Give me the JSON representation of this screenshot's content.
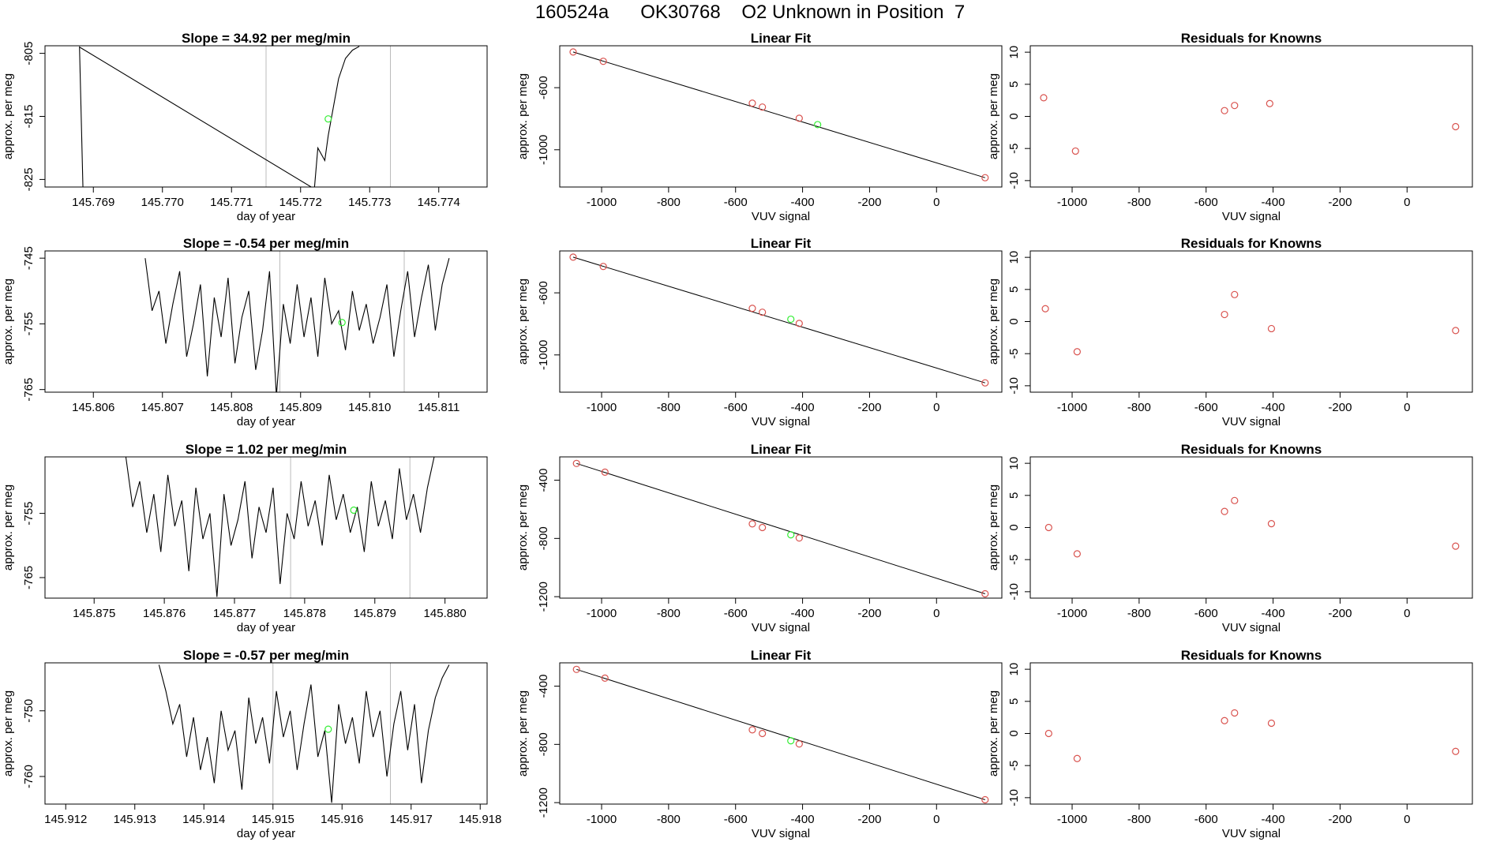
{
  "header": {
    "title": "160524a      OK30768    O2 Unknown in Position  7"
  },
  "colors": {
    "known": "#d9534f",
    "unknown": "#33ee33",
    "line": "#000000",
    "vline": "#bbbbbb"
  },
  "chart_data": [
    {
      "type": "line",
      "row": 0,
      "col": 0,
      "title": "Slope =  34.92  per meg/min",
      "xlabel": "day of year",
      "ylabel": "approx. per meg",
      "xlim": [
        145.7683,
        145.7747
      ],
      "ylim": [
        -826.2,
        -803.8
      ],
      "xticks": [
        145.769,
        145.77,
        145.771,
        145.772,
        145.773,
        145.774
      ],
      "xtick_labels": [
        "145.769",
        "145.770",
        "145.771",
        "145.772",
        "145.773",
        "145.774"
      ],
      "yticks": [
        -805,
        -815,
        -825
      ],
      "ytick_labels": [
        "-805",
        "-815",
        "-825"
      ],
      "vlines": [
        145.7715,
        145.7733
      ],
      "series": [
        {
          "name": "signal",
          "x": [
            145.76885,
            145.7688,
            145.7722,
            145.77225,
            145.77235,
            145.7724,
            145.7725,
            145.77255,
            145.77265,
            145.77275,
            145.77285
          ],
          "y": [
            -826.5,
            -804,
            -826.5,
            -820,
            -822,
            -818,
            -812,
            -809,
            -805.8,
            -804.5,
            -803.9
          ]
        }
      ],
      "unknown_point": {
        "x": 145.7724,
        "y": -815.4
      }
    },
    {
      "type": "line",
      "row": 1,
      "col": 0,
      "title": "Slope =  -0.54  per meg/min",
      "xlabel": "day of year",
      "ylabel": "approx. per meg",
      "xlim": [
        145.8053,
        145.8117
      ],
      "ylim": [
        -765.4,
        -743.9
      ],
      "xticks": [
        145.806,
        145.807,
        145.808,
        145.809,
        145.81,
        145.811
      ],
      "xtick_labels": [
        "145.806",
        "145.807",
        "145.808",
        "145.809",
        "145.810",
        "145.811"
      ],
      "yticks": [
        -745,
        -755,
        -765
      ],
      "ytick_labels": [
        "-745",
        "-755",
        "-765"
      ],
      "vlines": [
        145.8087,
        145.8105
      ],
      "series": [
        {
          "name": "signal",
          "x": [
            145.80675,
            145.80685,
            145.80695,
            145.80705,
            145.80715,
            145.80725,
            145.80735,
            145.80745,
            145.80755,
            145.80765,
            145.80775,
            145.80785,
            145.80795,
            145.80805,
            145.80815,
            145.80825,
            145.80835,
            145.80845,
            145.80855,
            145.80865,
            145.80875,
            145.80885,
            145.80895,
            145.80905,
            145.80915,
            145.80925,
            145.80935,
            145.80945,
            145.80955,
            145.80965,
            145.80975,
            145.80985,
            145.80995,
            145.81005,
            145.81015,
            145.81025,
            145.81035,
            145.81045,
            145.81055,
            145.81065,
            145.81075,
            145.81085,
            145.81095,
            145.81105,
            145.81115
          ],
          "y": [
            -745,
            -753,
            -750,
            -758,
            -752,
            -747,
            -760,
            -755,
            -749,
            -763,
            -751,
            -757,
            -748,
            -761,
            -754,
            -750,
            -762,
            -756,
            -747,
            -766,
            -752,
            -758,
            -749,
            -757,
            -751,
            -760,
            -748,
            -755,
            -753,
            -759,
            -750,
            -756,
            -752,
            -758,
            -754,
            -749,
            -760,
            -753,
            -747,
            -757,
            -751,
            -746,
            -756,
            -749,
            -745
          ]
        }
      ],
      "unknown_point": {
        "x": 145.8096,
        "y": -754.8
      }
    },
    {
      "type": "line",
      "row": 2,
      "col": 0,
      "title": "Slope =  1.02  per meg/min",
      "xlabel": "day of year",
      "ylabel": "approx. per meg",
      "xlim": [
        145.8743,
        145.8806
      ],
      "ylim": [
        -768.2,
        -746.2
      ],
      "xticks": [
        145.875,
        145.876,
        145.877,
        145.878,
        145.879,
        145.88
      ],
      "xtick_labels": [
        "145.875",
        "145.876",
        "145.877",
        "145.878",
        "145.879",
        "145.880"
      ],
      "yticks": [
        -755,
        -765
      ],
      "ytick_labels": [
        "-755",
        "-765"
      ],
      "vlines": [
        145.8778,
        145.8795
      ],
      "series": [
        {
          "name": "signal",
          "x": [
            145.87545,
            145.87555,
            145.87565,
            145.87575,
            145.87585,
            145.87595,
            145.87605,
            145.87615,
            145.87625,
            145.87635,
            145.87645,
            145.87655,
            145.87665,
            145.87675,
            145.87685,
            145.87695,
            145.87705,
            145.87715,
            145.87725,
            145.87735,
            145.87745,
            145.87755,
            145.87765,
            145.87775,
            145.87785,
            145.87795,
            145.87805,
            145.87815,
            145.87825,
            145.87835,
            145.87845,
            145.87855,
            145.87865,
            145.87875,
            145.87885,
            145.87895,
            145.87905,
            145.87915,
            145.87925,
            145.87935,
            145.87945,
            145.87955,
            145.87965,
            145.87975,
            145.87985,
            145.87995
          ],
          "y": [
            -746,
            -754,
            -750,
            -758,
            -752,
            -761,
            -749,
            -757,
            -753,
            -764,
            -751,
            -759,
            -755,
            -768,
            -752,
            -760,
            -756,
            -750,
            -762,
            -754,
            -758,
            -751,
            -766,
            -755,
            -759,
            -750,
            -757,
            -753,
            -760,
            -749,
            -756,
            -752,
            -758,
            -754,
            -761,
            -750,
            -757,
            -753,
            -759,
            -748,
            -756,
            -752,
            -758,
            -751,
            -746,
            -746
          ]
        }
      ],
      "unknown_point": {
        "x": 145.8787,
        "y": -754.5
      }
    },
    {
      "type": "line",
      "row": 3,
      "col": 0,
      "title": "Slope =  -0.57  per meg/min",
      "xlabel": "day of year",
      "ylabel": "approx. per meg",
      "xlim": [
        145.9117,
        145.9181
      ],
      "ylim": [
        -764.2,
        -742.7
      ],
      "xticks": [
        145.912,
        145.913,
        145.914,
        145.915,
        145.916,
        145.917,
        145.918
      ],
      "xtick_labels": [
        "145.912",
        "145.913",
        "145.914",
        "145.915",
        "145.916",
        "145.917",
        "145.918"
      ],
      "yticks": [
        -750,
        -760
      ],
      "ytick_labels": [
        "-750",
        "-760"
      ],
      "vlines": [
        145.915,
        145.9167
      ],
      "series": [
        {
          "name": "signal",
          "x": [
            145.91335,
            145.91345,
            145.91355,
            145.91365,
            145.91375,
            145.91385,
            145.91395,
            145.91405,
            145.91415,
            145.91425,
            145.91435,
            145.91445,
            145.91455,
            145.91465,
            145.91475,
            145.91485,
            145.91495,
            145.91505,
            145.91515,
            145.91525,
            145.91535,
            145.91545,
            145.91555,
            145.91565,
            145.91575,
            145.91585,
            145.91595,
            145.91605,
            145.91615,
            145.91625,
            145.91635,
            145.91645,
            145.91655,
            145.91665,
            145.91675,
            145.91685,
            145.91695,
            145.91705,
            145.91715,
            145.91725,
            145.91735,
            145.91745,
            145.91755
          ],
          "y": [
            -743,
            -747,
            -752,
            -749,
            -757,
            -751,
            -759,
            -754,
            -761,
            -750,
            -756,
            -753,
            -762,
            -748,
            -755,
            -751,
            -758,
            -747,
            -754,
            -750,
            -759,
            -752,
            -746,
            -757,
            -753,
            -764,
            -749,
            -755,
            -751,
            -758,
            -747,
            -754,
            -750,
            -760,
            -752,
            -747,
            -756,
            -749,
            -761,
            -753,
            -748,
            -745,
            -743
          ]
        }
      ],
      "unknown_point": {
        "x": 145.9158,
        "y": -752.8
      }
    },
    {
      "type": "scatter",
      "row": 0,
      "col": 1,
      "title": "Linear Fit",
      "xlabel": "VUV signal",
      "ylabel": "approx. per meg",
      "xlim": [
        -1125,
        195
      ],
      "ylim": [
        -1240,
        -330
      ],
      "xticks": [
        -1000,
        -800,
        -600,
        -400,
        -200,
        0
      ],
      "xtick_labels": [
        "-1000",
        "-800",
        "-600",
        "-400",
        "-200",
        "0"
      ],
      "yticks": [
        -600,
        -1000
      ],
      "ytick_labels": [
        "-600",
        "-1000"
      ],
      "known_x": [
        -1085,
        -995,
        -550,
        -520,
        -410,
        145
      ],
      "known_y": [
        -370,
        -430,
        -700,
        -725,
        -797,
        -1180
      ],
      "unknown_point": {
        "x": -355,
        "y": -838
      },
      "fit_line": {
        "x": [
          -1085,
          145
        ],
        "y": [
          -370,
          -1180
        ]
      }
    },
    {
      "type": "scatter",
      "row": 1,
      "col": 1,
      "title": "Linear Fit",
      "xlabel": "VUV signal",
      "ylabel": "approx. per meg",
      "xlim": [
        -1125,
        195
      ],
      "ylim": [
        -1240,
        -330
      ],
      "xticks": [
        -1000,
        -800,
        -600,
        -400,
        -200,
        0
      ],
      "xtick_labels": [
        "-1000",
        "-800",
        "-600",
        "-400",
        "-200",
        "0"
      ],
      "yticks": [
        -600,
        -1000
      ],
      "ytick_labels": [
        "-600",
        "-1000"
      ],
      "known_x": [
        -1085,
        -995,
        -550,
        -520,
        -410,
        145
      ],
      "known_y": [
        -370,
        -430,
        -700,
        -725,
        -797,
        -1180
      ],
      "unknown_point": {
        "x": -435,
        "y": -770
      },
      "fit_line": {
        "x": [
          -1085,
          145
        ],
        "y": [
          -370,
          -1180
        ]
      }
    },
    {
      "type": "scatter",
      "row": 2,
      "col": 1,
      "title": "Linear Fit",
      "xlabel": "VUV signal",
      "ylabel": "approx. per meg",
      "xlim": [
        -1125,
        195
      ],
      "ylim": [
        -1210,
        -240
      ],
      "xticks": [
        -1000,
        -800,
        -600,
        -400,
        -200,
        0
      ],
      "xtick_labels": [
        "-1000",
        "-800",
        "-600",
        "-400",
        "-200",
        "0"
      ],
      "yticks": [
        -400,
        -800,
        -1200
      ],
      "ytick_labels": [
        "-400",
        "-800",
        "-1200"
      ],
      "known_x": [
        -1075,
        -990,
        -550,
        -520,
        -410,
        145
      ],
      "known_y": [
        -285,
        -345,
        -700,
        -725,
        -797,
        -1180
      ],
      "unknown_point": {
        "x": -435,
        "y": -775
      },
      "fit_line": {
        "x": [
          -1075,
          145
        ],
        "y": [
          -285,
          -1180
        ]
      }
    },
    {
      "type": "scatter",
      "row": 3,
      "col": 1,
      "title": "Linear Fit",
      "xlabel": "VUV signal",
      "ylabel": "approx. per meg",
      "xlim": [
        -1125,
        195
      ],
      "ylim": [
        -1210,
        -240
      ],
      "xticks": [
        -1000,
        -800,
        -600,
        -400,
        -200,
        0
      ],
      "xtick_labels": [
        "-1000",
        "-800",
        "-600",
        "-400",
        "-200",
        "0"
      ],
      "yticks": [
        -400,
        -800,
        -1200
      ],
      "ytick_labels": [
        "-400",
        "-800",
        "-1200"
      ],
      "known_x": [
        -1075,
        -990,
        -550,
        -520,
        -410,
        145
      ],
      "known_y": [
        -285,
        -345,
        -700,
        -725,
        -797,
        -1180
      ],
      "unknown_point": {
        "x": -435,
        "y": -775
      },
      "fit_line": {
        "x": [
          -1075,
          145
        ],
        "y": [
          -285,
          -1180
        ]
      }
    },
    {
      "type": "scatter",
      "row": 0,
      "col": 2,
      "title": "Residuals for Knowns",
      "xlabel": "VUV signal",
      "ylabel": "approx. per meg",
      "xlim": [
        -1125,
        195
      ],
      "ylim": [
        -11,
        11
      ],
      "xticks": [
        -1000,
        -800,
        -600,
        -400,
        -200,
        0
      ],
      "xtick_labels": [
        "-1000",
        "-800",
        "-600",
        "-400",
        "-200",
        "0"
      ],
      "yticks": [
        10,
        5,
        0,
        -5,
        -10
      ],
      "ytick_labels": [
        "10",
        "5",
        "0",
        "-5",
        "-10"
      ],
      "x": [
        -1085,
        -990,
        -545,
        -515,
        -410,
        145
      ],
      "y": [
        2.9,
        -5.4,
        0.9,
        1.7,
        2.0,
        -1.6
      ]
    },
    {
      "type": "scatter",
      "row": 1,
      "col": 2,
      "title": "Residuals for Knowns",
      "xlabel": "VUV signal",
      "ylabel": "approx. per meg",
      "xlim": [
        -1125,
        195
      ],
      "ylim": [
        -11,
        11
      ],
      "xticks": [
        -1000,
        -800,
        -600,
        -400,
        -200,
        0
      ],
      "xtick_labels": [
        "-1000",
        "-800",
        "-600",
        "-400",
        "-200",
        "0"
      ],
      "yticks": [
        10,
        5,
        0,
        -5,
        -10
      ],
      "ytick_labels": [
        "10",
        "5",
        "0",
        "-5",
        "-10"
      ],
      "x": [
        -1080,
        -985,
        -545,
        -515,
        -405,
        145
      ],
      "y": [
        2.0,
        -4.7,
        1.1,
        4.2,
        -1.1,
        -1.4
      ]
    },
    {
      "type": "scatter",
      "row": 2,
      "col": 2,
      "title": "Residuals for Knowns",
      "xlabel": "VUV signal",
      "ylabel": "approx. per meg",
      "xlim": [
        -1125,
        195
      ],
      "ylim": [
        -11,
        11
      ],
      "xticks": [
        -1000,
        -800,
        -600,
        -400,
        -200,
        0
      ],
      "xtick_labels": [
        "-1000",
        "-800",
        "-600",
        "-400",
        "-200",
        "0"
      ],
      "yticks": [
        10,
        5,
        0,
        -5,
        -10
      ],
      "ytick_labels": [
        "10",
        "5",
        "0",
        "-5",
        "-10"
      ],
      "x": [
        -1070,
        -985,
        -545,
        -515,
        -405,
        145
      ],
      "y": [
        0.0,
        -4.1,
        2.5,
        4.2,
        0.6,
        -2.9
      ]
    },
    {
      "type": "scatter",
      "row": 3,
      "col": 2,
      "title": "Residuals for Knowns",
      "xlabel": "VUV signal",
      "ylabel": "approx. per meg",
      "xlim": [
        -1125,
        195
      ],
      "ylim": [
        -11,
        11
      ],
      "xticks": [
        -1000,
        -800,
        -600,
        -400,
        -200,
        0
      ],
      "xtick_labels": [
        "-1000",
        "-800",
        "-600",
        "-400",
        "-200",
        "0"
      ],
      "yticks": [
        10,
        5,
        0,
        -5,
        -10
      ],
      "ytick_labels": [
        "10",
        "5",
        "0",
        "-5",
        "-10"
      ],
      "x": [
        -1070,
        -985,
        -545,
        -515,
        -405,
        145
      ],
      "y": [
        0.0,
        -3.9,
        2.0,
        3.2,
        1.6,
        -2.8
      ]
    }
  ]
}
